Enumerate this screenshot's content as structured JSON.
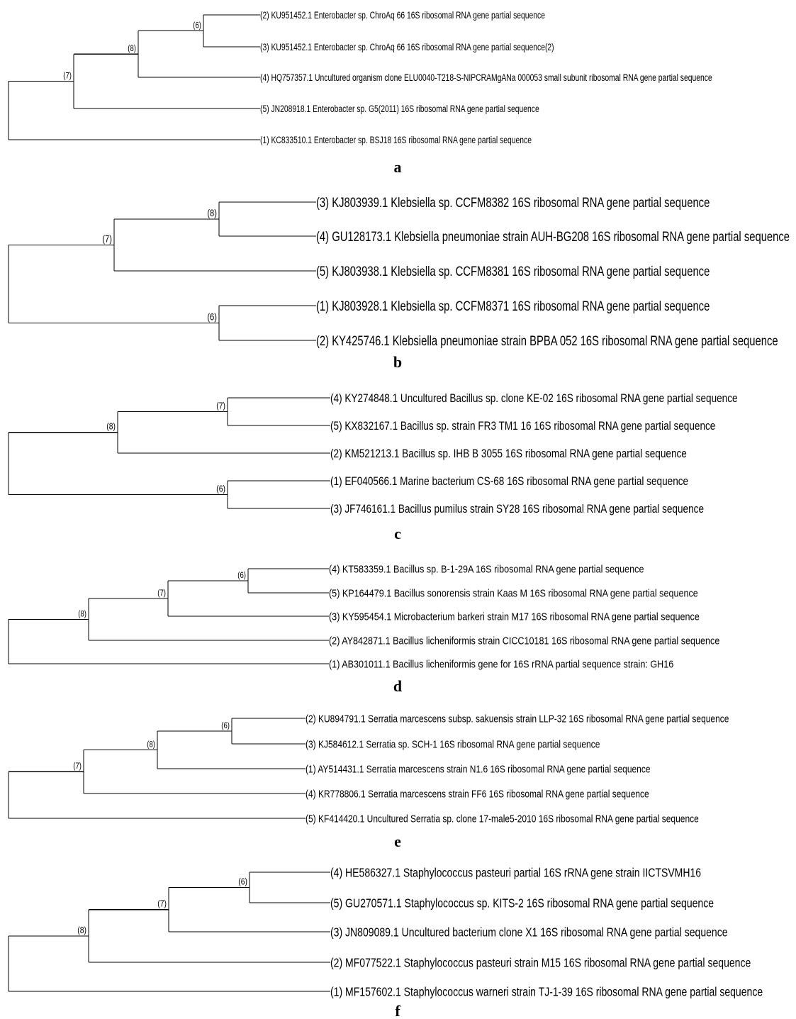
{
  "figure": {
    "panels": [
      {
        "letter": "a",
        "nodes": [
          {
            "id": "n6",
            "label": "(6)",
            "children": [
              "L2",
              "L3"
            ]
          },
          {
            "id": "n8",
            "label": "(8)",
            "children": [
              "n6",
              "L4"
            ]
          },
          {
            "id": "n7",
            "label": "(7)",
            "children": [
              "n8",
              "L5"
            ]
          },
          {
            "id": "root",
            "label": "",
            "children": [
              "n7",
              "L1"
            ]
          }
        ],
        "leaves": [
          {
            "id": "L2",
            "text": "(2) KU951452.1 Enterobacter sp. ChroAq 66 16S ribosomal RNA gene partial sequence"
          },
          {
            "id": "L3",
            "text": "(3) KU951452.1 Enterobacter sp. ChroAq 66 16S ribosomal RNA gene partial sequence(2)"
          },
          {
            "id": "L4",
            "text": "(4) HQ757357.1 Uncultured organism clone ELU0040-T218-S-NIPCRAMgANa 000053 small subunit ribosomal RNA gene partial sequence"
          },
          {
            "id": "L5",
            "text": "(5) JN208918.1 Enterobacter sp. G5(2011) 16S ribosomal RNA gene partial sequence"
          },
          {
            "id": "L1",
            "text": "(1) KC833510.1 Enterobacter sp. BSJ18 16S ribosomal RNA gene partial sequence"
          }
        ]
      },
      {
        "letter": "b",
        "nodes": [
          {
            "id": "n8",
            "label": "(8)",
            "children": [
              "L3",
              "L4"
            ]
          },
          {
            "id": "n7",
            "label": "(7)",
            "children": [
              "n8",
              "L5"
            ]
          },
          {
            "id": "n6",
            "label": "(6)",
            "children": [
              "L1",
              "L2"
            ]
          },
          {
            "id": "root",
            "label": "",
            "children": [
              "n7",
              "n6"
            ]
          }
        ],
        "leaves": [
          {
            "id": "L3",
            "text": "(3) KJ803939.1 Klebsiella sp. CCFM8382 16S ribosomal RNA gene partial sequence"
          },
          {
            "id": "L4",
            "text": "(4) GU128173.1 Klebsiella pneumoniae strain AUH-BG208 16S ribosomal RNA gene partial sequence"
          },
          {
            "id": "L5",
            "text": "(5) KJ803938.1 Klebsiella sp. CCFM8381 16S ribosomal RNA gene partial sequence"
          },
          {
            "id": "L1",
            "text": "(1) KJ803928.1 Klebsiella sp. CCFM8371 16S ribosomal RNA gene partial sequence"
          },
          {
            "id": "L2",
            "text": "(2) KY425746.1 Klebsiella pneumoniae strain BPBA 052 16S ribosomal RNA gene partial sequence"
          }
        ]
      },
      {
        "letter": "c",
        "nodes": [
          {
            "id": "n7",
            "label": "(7)",
            "children": [
              "L4",
              "L5"
            ]
          },
          {
            "id": "n8",
            "label": "(8)",
            "children": [
              "n7",
              "L2"
            ]
          },
          {
            "id": "n6",
            "label": "(6)",
            "children": [
              "L1",
              "L3"
            ]
          },
          {
            "id": "root",
            "label": "",
            "children": [
              "n8",
              "n6"
            ]
          }
        ],
        "leaves": [
          {
            "id": "L4",
            "text": "(4) KY274848.1 Uncultured Bacillus sp. clone KE-02 16S ribosomal RNA gene partial sequence"
          },
          {
            "id": "L5",
            "text": "(5) KX832167.1 Bacillus sp. strain FR3 TM1 16 16S ribosomal RNA gene partial sequence"
          },
          {
            "id": "L2",
            "text": "(2) KM521213.1 Bacillus sp. IHB B 3055 16S ribosomal RNA gene partial sequence"
          },
          {
            "id": "L1",
            "text": "(1) EF040566.1 Marine bacterium CS-68 16S ribosomal RNA gene partial sequence"
          },
          {
            "id": "L3",
            "text": "(3) JF746161.1 Bacillus pumilus strain SY28 16S ribosomal RNA gene partial sequence"
          }
        ]
      },
      {
        "letter": "d",
        "nodes": [
          {
            "id": "n6",
            "label": "(6)",
            "children": [
              "L4",
              "L5"
            ]
          },
          {
            "id": "n7",
            "label": "(7)",
            "children": [
              "n6",
              "L3"
            ]
          },
          {
            "id": "n8",
            "label": "(8)",
            "children": [
              "n7",
              "L2"
            ]
          },
          {
            "id": "root",
            "label": "",
            "children": [
              "n8",
              "L1"
            ]
          }
        ],
        "leaves": [
          {
            "id": "L4",
            "text": "(4) KT583359.1 Bacillus sp. B-1-29A 16S ribosomal RNA gene partial sequence"
          },
          {
            "id": "L5",
            "text": "(5) KP164479.1 Bacillus sonorensis strain Kaas M 16S ribosomal RNA gene partial sequence"
          },
          {
            "id": "L3",
            "text": "(3) KY595454.1 Microbacterium barkeri strain M17 16S ribosomal RNA gene partial sequence"
          },
          {
            "id": "L2",
            "text": "(2) AY842871.1 Bacillus licheniformis strain CICC10181 16S ribosomal RNA gene partial sequence"
          },
          {
            "id": "L1",
            "text": "(1) AB301011.1 Bacillus licheniformis gene for 16S rRNA partial sequence strain: GH16"
          }
        ]
      },
      {
        "letter": "e",
        "nodes": [
          {
            "id": "n6",
            "label": "(6)",
            "children": [
              "L2",
              "L3"
            ]
          },
          {
            "id": "n8",
            "label": "(8)",
            "children": [
              "n6",
              "L1"
            ]
          },
          {
            "id": "n7",
            "label": "(7)",
            "children": [
              "n8",
              "L4"
            ]
          },
          {
            "id": "root",
            "label": "",
            "children": [
              "n7",
              "L5"
            ]
          }
        ],
        "leaves": [
          {
            "id": "L2",
            "text": "(2) KU894791.1 Serratia marcescens subsp. sakuensis strain LLP-32 16S ribosomal RNA gene partial sequence"
          },
          {
            "id": "L3",
            "text": "(3) KJ584612.1 Serratia sp. SCH-1 16S ribosomal RNA gene partial sequence"
          },
          {
            "id": "L1",
            "text": "(1) AY514431.1 Serratia marcescens strain N1.6 16S ribosomal RNA gene partial sequence"
          },
          {
            "id": "L4",
            "text": "(4) KR778806.1 Serratia marcescens strain FF6 16S ribosomal RNA gene partial sequence"
          },
          {
            "id": "L5",
            "text": "(5) KF414420.1 Uncultured Serratia sp. clone 17-male5-2010 16S ribosomal RNA gene partial sequence"
          }
        ]
      },
      {
        "letter": "f",
        "nodes": [
          {
            "id": "n6",
            "label": "(6)",
            "children": [
              "L4",
              "L5"
            ]
          },
          {
            "id": "n7",
            "label": "(7)",
            "children": [
              "n6",
              "L3"
            ]
          },
          {
            "id": "n8",
            "label": "(8)",
            "children": [
              "n7",
              "L2"
            ]
          },
          {
            "id": "root",
            "label": "",
            "children": [
              "n8",
              "L1"
            ]
          }
        ],
        "leaves": [
          {
            "id": "L4",
            "text": "(4) HE586327.1 Staphylococcus pasteuri partial 16S rRNA gene strain IICTSVMH16"
          },
          {
            "id": "L5",
            "text": "(5) GU270571.1 Staphylococcus sp. KITS-2 16S ribosomal RNA gene partial sequence"
          },
          {
            "id": "L3",
            "text": "(3) JN809089.1 Uncultured bacterium clone X1 16S ribosomal RNA gene partial sequence"
          },
          {
            "id": "L2",
            "text": "(2) MF077522.1 Staphylococcus pasteuri strain M15 16S ribosomal RNA gene partial sequence"
          },
          {
            "id": "L1",
            "text": "(1) MF157602.1 Staphylococcus warneri strain TJ-1-39 16S ribosomal RNA gene partial sequence"
          }
        ]
      }
    ]
  }
}
